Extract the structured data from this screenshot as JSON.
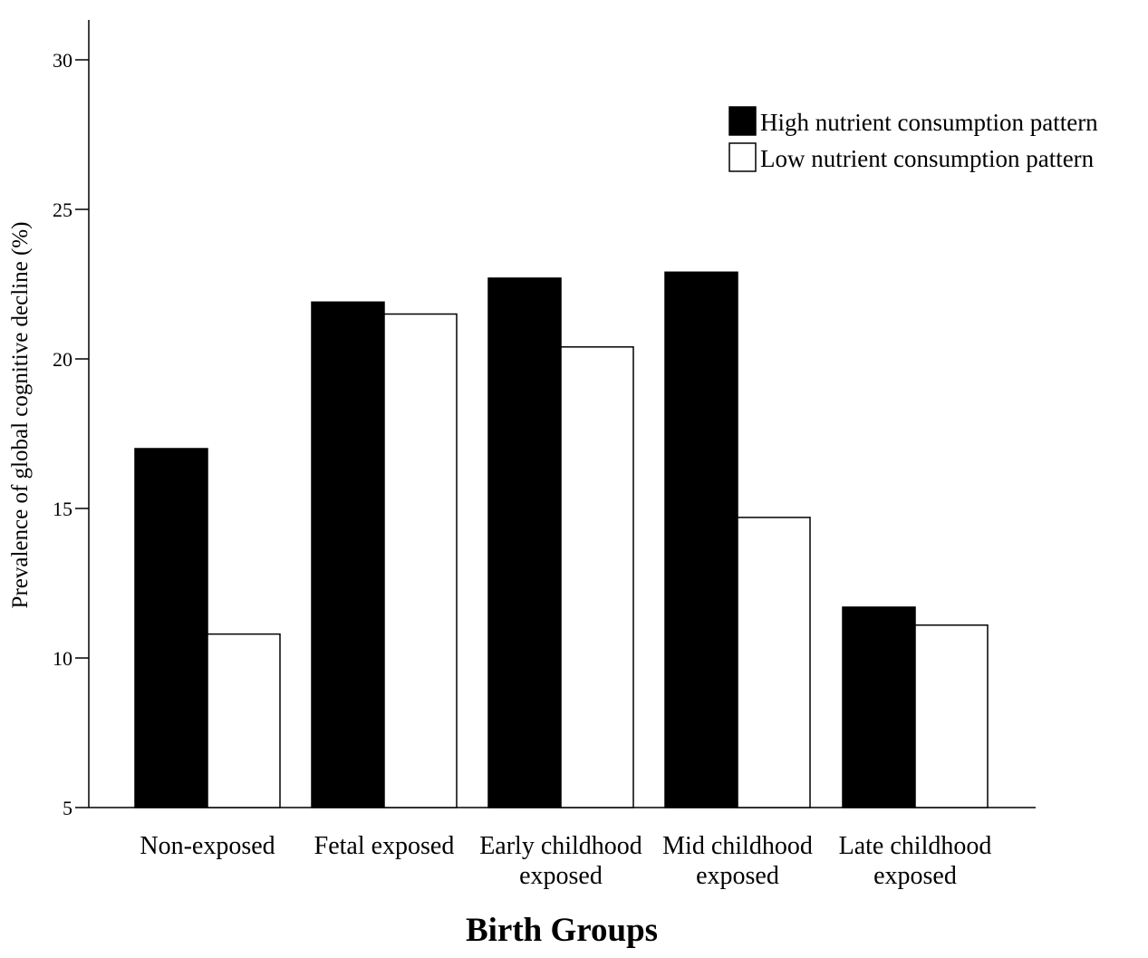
{
  "chart_data": {
    "type": "bar",
    "categories": [
      [
        "Non-exposed"
      ],
      [
        "Fetal exposed"
      ],
      [
        "Early childhood",
        "exposed"
      ],
      [
        "Mid childhood",
        "exposed"
      ],
      [
        "Late childhood",
        "exposed"
      ]
    ],
    "series": [
      {
        "name": "High nutrient consumption pattern",
        "color": "#000000",
        "values": [
          17.0,
          21.9,
          22.7,
          22.9,
          11.7
        ]
      },
      {
        "name": "Low nutrient consumption pattern",
        "color": "#ffffff",
        "values": [
          10.8,
          21.5,
          20.4,
          14.7,
          11.1
        ]
      }
    ],
    "xlabel": "Birth Groups",
    "ylabel": "Prevalence of global cognitive decline (%)",
    "ylim": [
      5,
      31.5
    ],
    "yticks": [
      5,
      10,
      15,
      20,
      25,
      30
    ],
    "grid": false,
    "legend_position": "top-right"
  }
}
